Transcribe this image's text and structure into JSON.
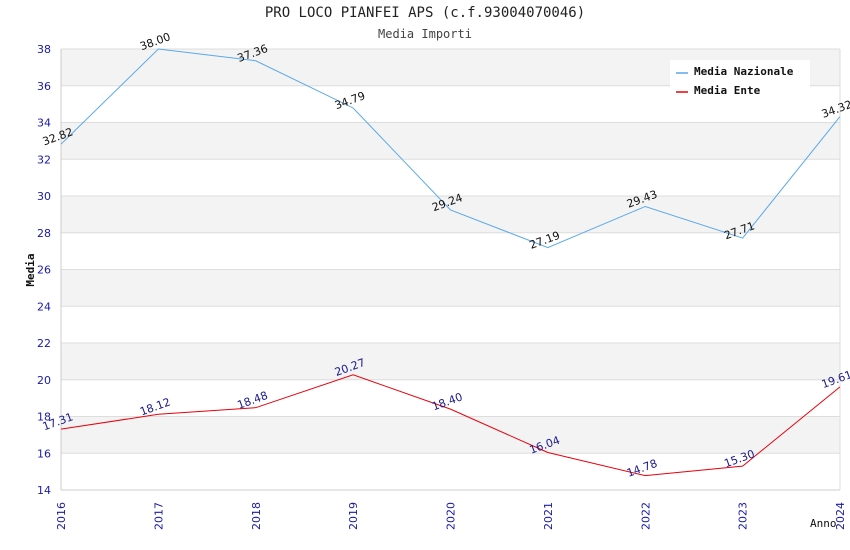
{
  "chart_data": {
    "type": "line",
    "title": "PRO LOCO PIANFEI APS (c.f.93004070046)",
    "subtitle": "Media Importi",
    "xlabel": "Anno",
    "ylabel": "Media",
    "categories": [
      "2016",
      "2017",
      "2018",
      "2019",
      "2020",
      "2021",
      "2022",
      "2023",
      "2024"
    ],
    "ylim": [
      14,
      38
    ],
    "yticks": [
      "14",
      "16",
      "18",
      "20",
      "22",
      "24",
      "26",
      "28",
      "30",
      "32",
      "34",
      "36",
      "38"
    ],
    "grid": true,
    "legend_position": "top-right",
    "series": [
      {
        "name": "Media Nazionale",
        "color": "#5aa8e8",
        "label_color": "#111111",
        "values": [
          32.82,
          38.0,
          37.36,
          34.79,
          29.24,
          27.19,
          29.43,
          27.71,
          34.32
        ],
        "labels": [
          "32.82",
          "38.00",
          "37.36",
          "34.79",
          "29.24",
          "27.19",
          "29.43",
          "27.71",
          "34.32"
        ]
      },
      {
        "name": "Media Ente",
        "color": "#e8000b",
        "label_color": "#1a1a8c",
        "values": [
          17.31,
          18.12,
          18.48,
          20.27,
          18.4,
          16.04,
          14.78,
          15.3,
          19.61
        ],
        "labels": [
          "17.31",
          "18.12",
          "18.48",
          "20.27",
          "18.40",
          "16.04",
          "14.78",
          "15.30",
          "19.61"
        ]
      }
    ]
  }
}
